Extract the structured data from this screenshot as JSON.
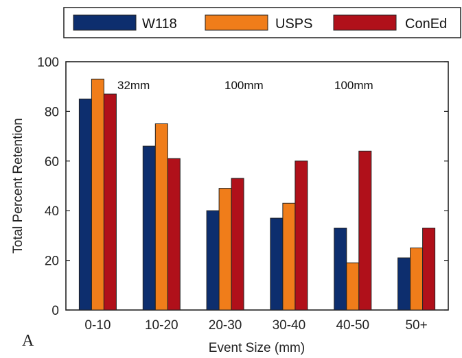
{
  "chart_data": {
    "type": "bar",
    "title": "",
    "xlabel": "Event Size (mm)",
    "ylabel": "Total Percent Retention",
    "categories": [
      "0-10",
      "10-20",
      "20-30",
      "30-40",
      "40-50",
      "50+"
    ],
    "series": [
      {
        "name": "W118",
        "color": "#0d2e6e",
        "values": [
          85,
          66,
          40,
          37,
          33,
          21
        ]
      },
      {
        "name": "USPS",
        "color": "#f07d1a",
        "values": [
          93,
          75,
          49,
          43,
          19,
          25
        ]
      },
      {
        "name": "ConEd",
        "color": "#b0101a",
        "values": [
          87,
          61,
          53,
          60,
          64,
          33
        ]
      }
    ],
    "ylim": [
      0,
      100
    ],
    "yticks": [
      0,
      20,
      40,
      60,
      80,
      100
    ],
    "grid": false,
    "legend_position": "top",
    "annotations": [
      "32mm",
      "100mm",
      "100mm"
    ],
    "panel_label": "A"
  }
}
